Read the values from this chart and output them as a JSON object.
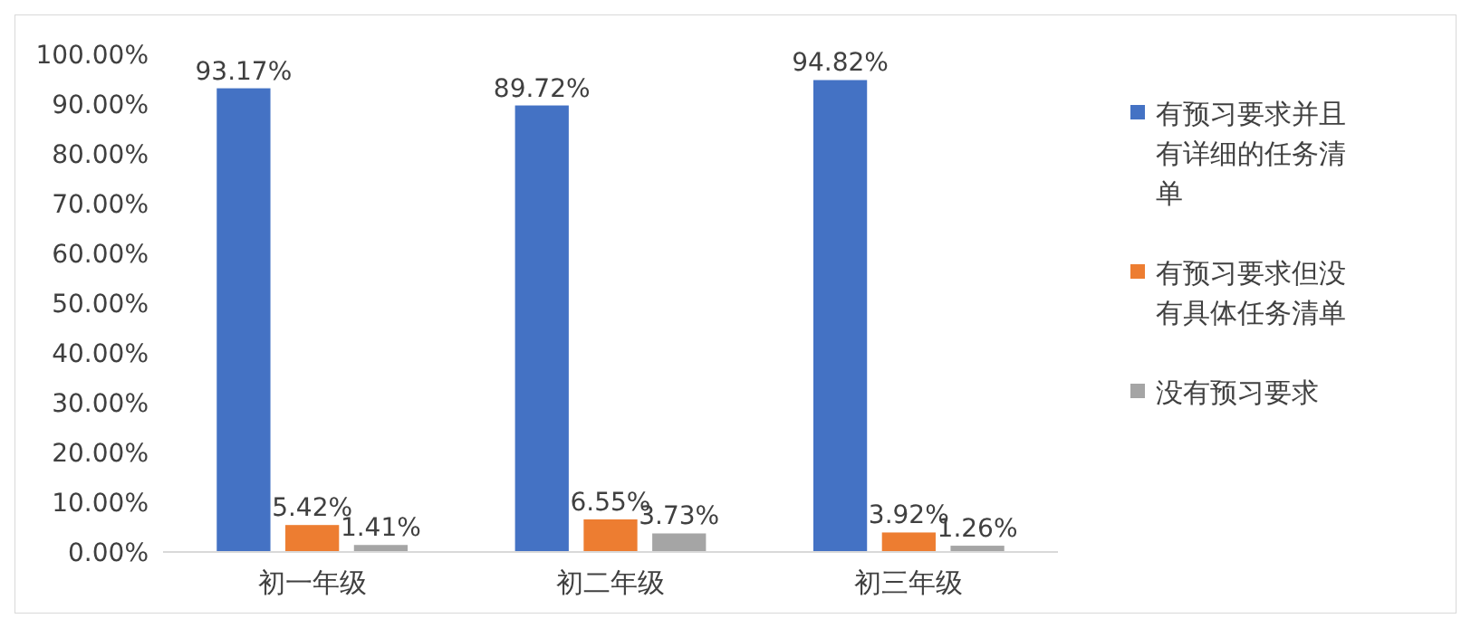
{
  "chart_data": {
    "type": "bar",
    "categories": [
      "初一年级",
      "初二年级",
      "初三年级"
    ],
    "series": [
      {
        "name": "有预习要求并且有详细的任务清单",
        "color": "#4472c4",
        "values": [
          93.17,
          89.72,
          94.82
        ],
        "value_labels": [
          "93.17%",
          "89.72%",
          "94.82%"
        ]
      },
      {
        "name": "有预习要求但没有具体任务清单",
        "color": "#ed7d31",
        "values": [
          5.42,
          6.55,
          3.92
        ],
        "value_labels": [
          "5.42%",
          "6.55%",
          "3.92%"
        ]
      },
      {
        "name": "没有预习要求",
        "color": "#a5a5a5",
        "values": [
          1.41,
          3.73,
          1.26
        ],
        "value_labels": [
          "1.41%",
          "3.73%",
          "1.26%"
        ]
      }
    ],
    "ylim": [
      0,
      100
    ],
    "yticks": [
      {
        "value": 0,
        "label": "0.00%"
      },
      {
        "value": 10,
        "label": "10.00%"
      },
      {
        "value": 20,
        "label": "20.00%"
      },
      {
        "value": 30,
        "label": "30.00%"
      },
      {
        "value": 40,
        "label": "40.00%"
      },
      {
        "value": 50,
        "label": "50.00%"
      },
      {
        "value": 60,
        "label": "60.00%"
      },
      {
        "value": 70,
        "label": "70.00%"
      },
      {
        "value": 80,
        "label": "80.00%"
      },
      {
        "value": 90,
        "label": "90.00%"
      },
      {
        "value": 100,
        "label": "100.00%"
      }
    ],
    "legend": "right",
    "grid": false
  }
}
